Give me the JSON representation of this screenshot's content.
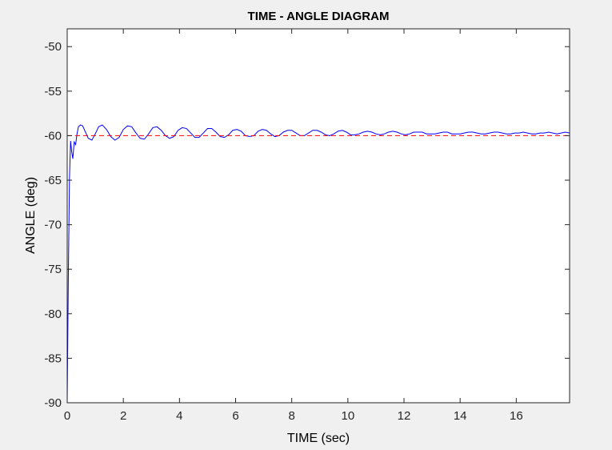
{
  "chart_data": {
    "type": "line",
    "title": "TIME - ANGLE DIAGRAM",
    "xlabel": "TIME (sec)",
    "ylabel": "ANGLE (deg)",
    "xlim": [
      0,
      17.9
    ],
    "ylim": [
      -90,
      -48
    ],
    "xticks": [
      "0",
      "2",
      "4",
      "6",
      "8",
      "10",
      "12",
      "14",
      "16"
    ],
    "yticks": [
      "-90",
      "-85",
      "-80",
      "-75",
      "-70",
      "-65",
      "-60",
      "-55",
      "-50"
    ],
    "grid": false,
    "colors": {
      "response": "#0000ff",
      "reference": "#ff0000",
      "axes": "#262626"
    },
    "series": [
      {
        "style": "solid",
        "color": "#0000ff",
        "x": [
          0,
          0.04,
          0.08,
          0.12,
          0.16,
          0.2,
          0.25,
          0.3,
          0.35,
          0.4,
          0.47,
          0.55,
          0.65,
          0.75,
          0.88,
          1.0,
          1.12,
          1.25,
          1.4,
          1.55,
          1.7,
          1.85,
          2.0,
          2.15,
          2.3,
          2.45,
          2.6,
          2.75,
          2.9,
          3.05,
          3.2,
          3.35,
          3.5,
          3.65,
          3.8,
          3.95,
          4.1,
          4.25,
          4.4,
          4.55,
          4.7,
          4.85,
          5.0,
          5.15,
          5.3,
          5.45,
          5.6,
          5.75,
          5.9,
          6.05,
          6.2,
          6.35,
          6.5,
          6.65,
          6.8,
          6.95,
          7.1,
          7.25,
          7.4,
          7.55,
          7.7,
          7.85,
          8.0,
          8.15,
          8.3,
          8.45,
          8.6,
          8.75,
          8.9,
          9.05,
          9.2,
          9.35,
          9.5,
          9.65,
          9.8,
          9.95,
          10.1,
          10.25,
          10.4,
          10.55,
          10.7,
          10.85,
          11.0,
          11.15,
          11.3,
          11.45,
          11.6,
          11.75,
          11.9,
          12.05,
          12.2,
          12.35,
          12.5,
          12.65,
          12.8,
          12.95,
          13.1,
          13.25,
          13.4,
          13.55,
          13.7,
          13.85,
          14.0,
          14.15,
          14.3,
          14.45,
          14.6,
          14.75,
          14.9,
          15.05,
          15.2,
          15.35,
          15.5,
          15.65,
          15.8,
          15.95,
          16.1,
          16.25,
          16.4,
          16.55,
          16.7,
          16.85,
          17.0,
          17.15,
          17.3,
          17.45,
          17.6,
          17.75,
          17.9
        ],
        "y": [
          -90,
          -76,
          -65,
          -60.6,
          -61.8,
          -62.6,
          -60.7,
          -61.0,
          -59.8,
          -59.0,
          -58.8,
          -58.9,
          -59.6,
          -60.3,
          -60.5,
          -59.8,
          -59.0,
          -58.8,
          -59.3,
          -60.1,
          -60.5,
          -60.2,
          -59.3,
          -58.9,
          -59.0,
          -59.7,
          -60.3,
          -60.4,
          -59.8,
          -59.1,
          -59.0,
          -59.4,
          -60.0,
          -60.3,
          -60.1,
          -59.4,
          -59.1,
          -59.2,
          -59.7,
          -60.2,
          -60.2,
          -59.7,
          -59.2,
          -59.2,
          -59.6,
          -60.1,
          -60.2,
          -59.9,
          -59.4,
          -59.3,
          -59.5,
          -60.0,
          -60.1,
          -60.0,
          -59.5,
          -59.3,
          -59.4,
          -59.8,
          -60.1,
          -60.0,
          -59.6,
          -59.4,
          -59.4,
          -59.7,
          -60.0,
          -60.0,
          -59.7,
          -59.4,
          -59.4,
          -59.6,
          -59.9,
          -60.0,
          -59.8,
          -59.5,
          -59.4,
          -59.6,
          -59.9,
          -59.9,
          -59.8,
          -59.6,
          -59.5,
          -59.6,
          -59.8,
          -59.9,
          -59.8,
          -59.6,
          -59.5,
          -59.6,
          -59.8,
          -59.9,
          -59.8,
          -59.6,
          -59.6,
          -59.6,
          -59.8,
          -59.8,
          -59.8,
          -59.7,
          -59.6,
          -59.6,
          -59.8,
          -59.8,
          -59.8,
          -59.7,
          -59.6,
          -59.6,
          -59.7,
          -59.8,
          -59.8,
          -59.7,
          -59.6,
          -59.6,
          -59.7,
          -59.8,
          -59.8,
          -59.7,
          -59.7,
          -59.6,
          -59.7,
          -59.8,
          -59.8,
          -59.7,
          -59.7,
          -59.6,
          -59.7,
          -59.8,
          -59.7,
          -59.6,
          -59.7
        ]
      },
      {
        "style": "dashed",
        "color": "#ff0000",
        "x": [
          0,
          17.9
        ],
        "y": [
          -60,
          -60
        ]
      }
    ]
  }
}
